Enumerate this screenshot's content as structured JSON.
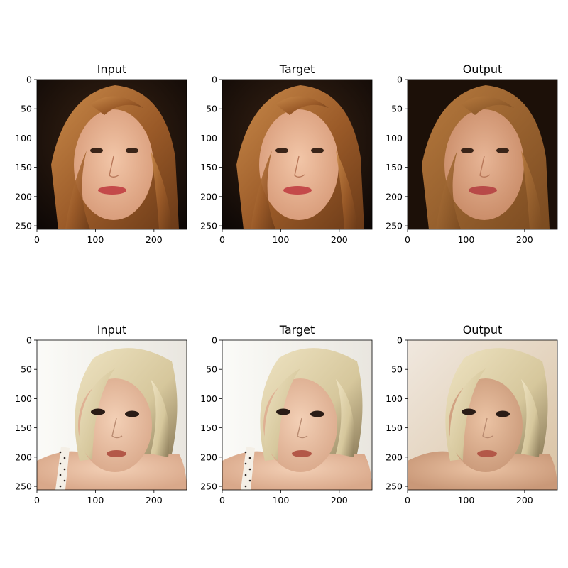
{
  "figure": {
    "panels": [
      {
        "title": "Input",
        "subject": "auburn-hair-face",
        "variant": "input"
      },
      {
        "title": "Target",
        "subject": "auburn-hair-face",
        "variant": "target"
      },
      {
        "title": "Output",
        "subject": "auburn-hair-face",
        "variant": "output"
      },
      {
        "title": "Input",
        "subject": "blonde-hair-face",
        "variant": "input"
      },
      {
        "title": "Target",
        "subject": "blonde-hair-face",
        "variant": "target"
      },
      {
        "title": "Output",
        "subject": "blonde-hair-face",
        "variant": "output"
      }
    ],
    "xticks": [
      "0",
      "100",
      "200"
    ],
    "xtick_values": [
      0,
      100,
      200
    ],
    "yticks": [
      "0",
      "50",
      "100",
      "150",
      "200",
      "250"
    ],
    "ytick_values": [
      0,
      50,
      100,
      150,
      200,
      250
    ],
    "image_extent": [
      0,
      256
    ]
  }
}
